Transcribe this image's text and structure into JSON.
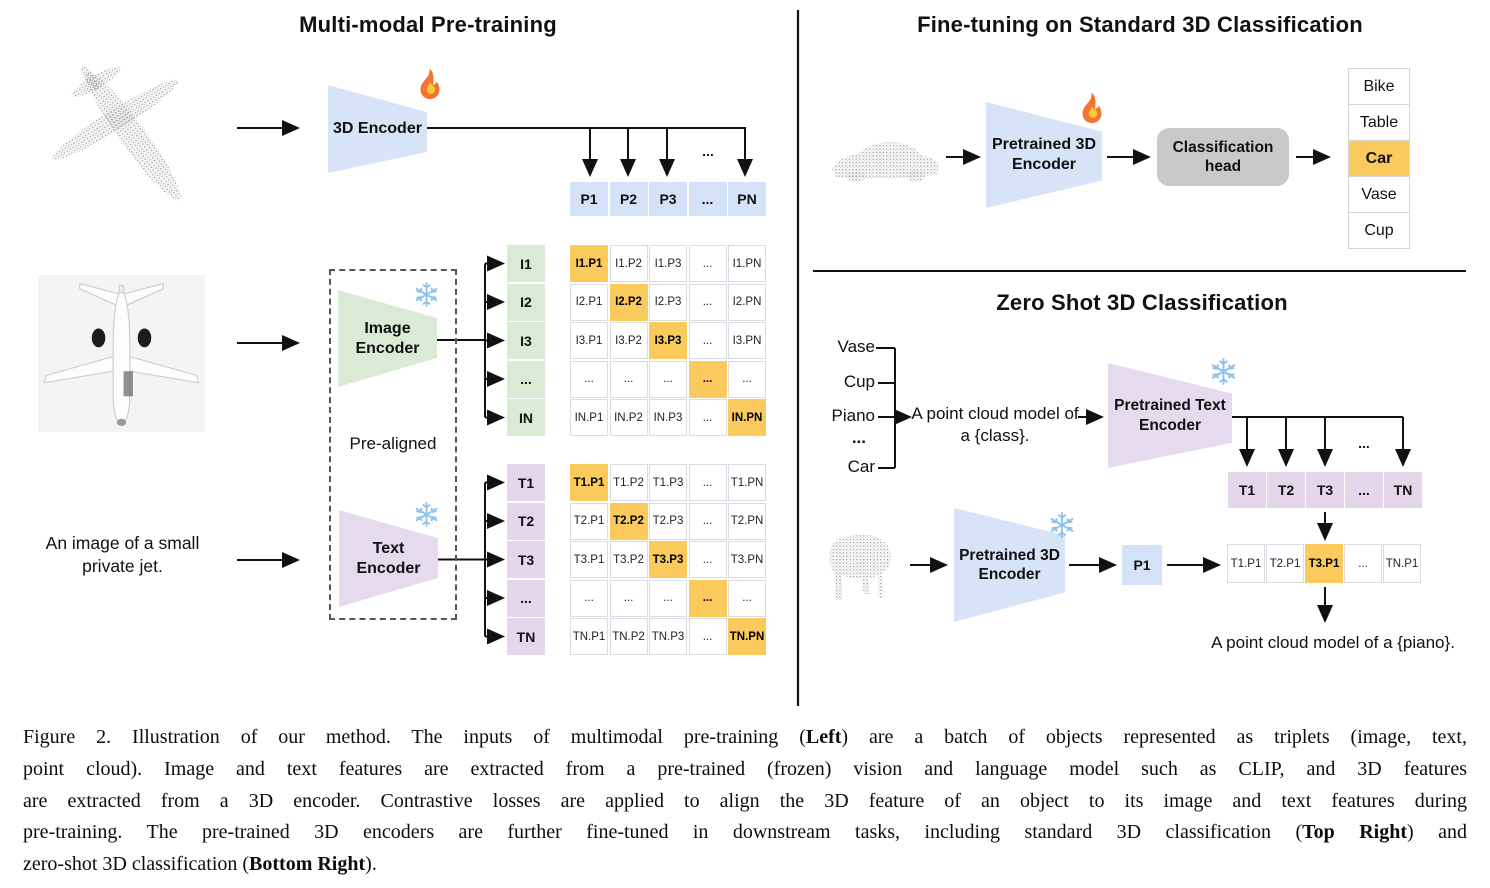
{
  "colors": {
    "encoder_blue": "#d7e4f8",
    "encoder_green": "#d9ead5",
    "encoder_purple": "#e6daee",
    "highlight_orange": "#fbca5d",
    "head_gray": "#c9c9c9"
  },
  "left": {
    "title": "Multi-modal Pre-training",
    "image_caption": "An image of a small\nprivate jet.",
    "encoder_3d_label": "3D Encoder",
    "image_encoder_label": "Image\nEncoder",
    "text_encoder_label": "Text\nEncoder",
    "pre_aligned_label": "Pre-aligned",
    "dots": "...",
    "p_row": [
      "P1",
      "P2",
      "P3",
      "...",
      "PN"
    ],
    "i_stack": [
      "I1",
      "I2",
      "I3",
      "...",
      "IN"
    ],
    "t_stack": [
      "T1",
      "T2",
      "T3",
      "...",
      "TN"
    ],
    "i_matrix": [
      [
        "I1.P1",
        "I1.P2",
        "I1.P3",
        "...",
        "I1.PN"
      ],
      [
        "I2.P1",
        "I2.P2",
        "I2.P3",
        "...",
        "I2.PN"
      ],
      [
        "I3.P1",
        "I3.P2",
        "I3.P3",
        "...",
        "I3.PN"
      ],
      [
        "...",
        "...",
        "...",
        "...",
        "..."
      ],
      [
        "IN.P1",
        "IN.P2",
        "IN.P3",
        "...",
        "IN.PN"
      ]
    ],
    "t_matrix": [
      [
        "T1.P1",
        "T1.P2",
        "T1.P3",
        "...",
        "T1.PN"
      ],
      [
        "T2.P1",
        "T2.P2",
        "T2.P3",
        "...",
        "T2.PN"
      ],
      [
        "T3.P1",
        "T3.P2",
        "T3.P3",
        "...",
        "T3.PN"
      ],
      [
        "...",
        "...",
        "...",
        "...",
        "..."
      ],
      [
        "TN.P1",
        "TN.P2",
        "TN.P3",
        "...",
        "TN.PN"
      ]
    ]
  },
  "top_right": {
    "title": "Fine-tuning on Standard 3D Classification",
    "encoder_label": "Pretrained 3D\nEncoder",
    "head_label": "Classification\nhead",
    "classes": [
      "Bike",
      "Table",
      "Car",
      "Vase",
      "Cup"
    ],
    "predicted_class": "Car"
  },
  "bottom_right": {
    "title": "Zero Shot 3D Classification",
    "class_prompts": [
      "Vase",
      "Cup",
      "Piano",
      "...",
      "Car"
    ],
    "prompt_template": "A point cloud model of\na {class}.",
    "text_encoder_label": "Pretrained Text\nEncoder",
    "encoder_3d_label": "Pretrained 3D\nEncoder",
    "p_box": "P1",
    "dots": "...",
    "t_row": [
      "T1",
      "T2",
      "T3",
      "...",
      "TN"
    ],
    "sim_row": [
      "T1.P1",
      "T2.P1",
      "T3.P1",
      "...",
      "TN.P1"
    ],
    "result_prompt": "A point cloud model of a {piano}."
  },
  "caption": {
    "lines": [
      [
        {
          "t": "Figure 2. Illustration of our method. The inputs of multimodal pre-training ("
        },
        {
          "t": "Left",
          "b": true
        },
        {
          "t": ") are a batch of objects represented as triplets (image, text,"
        }
      ],
      [
        {
          "t": "point cloud). Image and text features are extracted from a pre-trained (frozen) vision and language model such as CLIP, and 3D features"
        }
      ],
      [
        {
          "t": "are extracted from a 3D encoder. Contrastive losses are applied to align the 3D feature of an object to its image and text features during"
        }
      ],
      [
        {
          "t": "pre-training. The pre-trained 3D encoders are further fine-tuned in downstream tasks, including standard 3D classification ("
        },
        {
          "t": "Top Right",
          "b": true
        },
        {
          "t": ") and"
        }
      ],
      [
        {
          "t": "zero-shot 3D classification ("
        },
        {
          "t": "Bottom Right",
          "b": true
        },
        {
          "t": ")."
        }
      ]
    ]
  }
}
